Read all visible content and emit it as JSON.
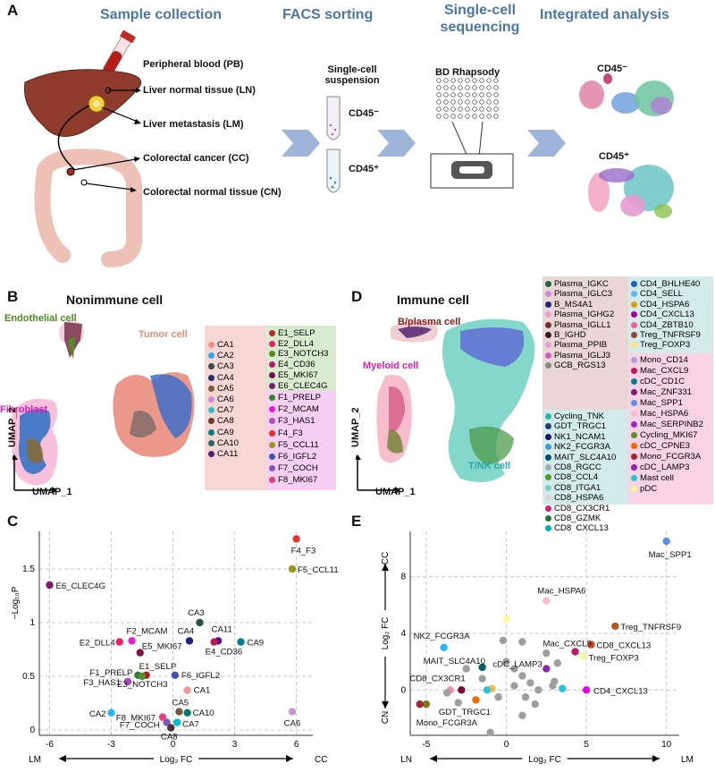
{
  "panels": {
    "A": {
      "label": "A",
      "titles": [
        "Sample collection",
        "FACS sorting",
        "Single-cell sequencing",
        "Integrated analysis"
      ],
      "samples": [
        "Peripheral blood (PB)",
        "Liver normal tissue (LN)",
        "Liver metastasis (LM)",
        "Colorectal cancer (CC)",
        "Colorectal normal tissue (CN)"
      ],
      "suspension": "Single-cell suspension",
      "cd45neg": "CD45⁻",
      "cd45pos": "CD45⁺",
      "platform": "BD Rhapsody"
    },
    "B": {
      "label": "B",
      "title": "Nonimmune cell",
      "cell_types": [
        "Endothelial cell",
        "Tumor cell",
        "Fibroblast"
      ],
      "umap2": "UMAP_2",
      "umap1": "UMAP_1",
      "legend_col1": [
        "CA1",
        "CA2",
        "CA3",
        "CA4",
        "CA5",
        "CA6",
        "CA7",
        "CA8",
        "CA9",
        "CA10",
        "CA11"
      ],
      "legend_col2_endo": [
        "E1_SELP",
        "E2_DLL4",
        "E3_NOTCH3",
        "E4_CD36",
        "E5_MKI67",
        "E6_CLEC4G"
      ],
      "legend_col2_fib": [
        "F1_PRELP",
        "F2_MCAM",
        "F3_HAS1",
        "F4_F3",
        "F5_CCL11",
        "F6_IGFL2",
        "F7_COCH",
        "F8_MKI67"
      ]
    },
    "C": {
      "label": "C"
    },
    "D": {
      "label": "D",
      "title": "Immune cell",
      "cell_types": [
        "B/plasma cell",
        "Myeloid cell",
        "T/NK cell"
      ],
      "umap2": "UMAP_2",
      "umap1": "UMAP_1",
      "legend_b": [
        "Plasma_IGKC",
        "Plasma_IGLC3",
        "B_MS4A1",
        "Plasma_IGHG2",
        "Plasma_IGLL1",
        "B_IGHD",
        "Plasma_PPIB",
        "Plasma_IGLJ3",
        "GCB_RGS13"
      ],
      "legend_t1": [
        "Cycling_TNK",
        "GDT_TRGC1",
        "NK1_NCAM1",
        "NK2_FCGR3A",
        "MAIT_SLC4A10",
        "CD8_RGCC",
        "CD8_CCL4",
        "CD8_ITGA1",
        "CD8_HSPA6",
        "CD8_CX3CR1",
        "CD8_GZMK",
        "CD8_CXCL13"
      ],
      "legend_t2": [
        "CD4_BHLHE40",
        "CD4_SELL",
        "CD4_HSPA6",
        "CD4_CXCL13",
        "CD4_ZBTB10",
        "Treg_TNFRSF9",
        "Treg_FOXP3"
      ],
      "legend_m": [
        "Mono_CD14",
        "Mac_CXCL9",
        "cDC_CD1C",
        "Mac_ZNF331",
        "Mac_SPP1",
        "Mac_HSPA6",
        "Mac_SERPINB2",
        "Cycling_MKI67",
        "cDC_CPNE3",
        "Mono_FCGR3A",
        "cDC_LAMP3",
        "Mast cell",
        "pDC"
      ]
    },
    "E": {
      "label": "E"
    }
  },
  "chart_data": [
    {
      "type": "scatter",
      "panel": "C",
      "xlabel": "Log₂ FC",
      "ylabel": "−Log₁₀P",
      "x_left": "LM",
      "x_right": "CC",
      "xlim": [
        -6.5,
        6.8
      ],
      "ylim": [
        -0.05,
        1.85
      ],
      "xticks": [
        -6,
        -3,
        0,
        3,
        6
      ],
      "yticks": [
        0,
        0.5,
        1,
        1.5
      ],
      "grid": true,
      "points": [
        {
          "label": "F4_F3",
          "x": 6.0,
          "y": 1.78,
          "color": "#e3342f"
        },
        {
          "label": "F5_CCL11",
          "x": 5.8,
          "y": 1.5,
          "color": "#9b9a1d"
        },
        {
          "label": "E6_CLEC4G",
          "x": -6.0,
          "y": 1.35,
          "color": "#7b1e6d"
        },
        {
          "label": "CA3",
          "x": 1.3,
          "y": 1.0,
          "color": "#2f4f4f"
        },
        {
          "label": "CA4",
          "x": 0.8,
          "y": 0.83,
          "color": "#1a237e"
        },
        {
          "label": "CA11",
          "x": 2.2,
          "y": 0.83,
          "color": "#4a148c"
        },
        {
          "label": "E4_CD36",
          "x": 2.0,
          "y": 0.82,
          "color": "#c2185b"
        },
        {
          "label": "CA9",
          "x": 3.3,
          "y": 0.82,
          "color": "#00838f"
        },
        {
          "label": "E2_DLL4",
          "x": -2.6,
          "y": 0.82,
          "color": "#e91e63"
        },
        {
          "label": "F2_MCAM",
          "x": -2.0,
          "y": 0.83,
          "color": "#e91ec8"
        },
        {
          "label": "E5_MKI67",
          "x": -1.6,
          "y": 0.72,
          "color": "#880e4f"
        },
        {
          "label": "E1_SELP",
          "x": -1.3,
          "y": 0.51,
          "color": "#b71c1c"
        },
        {
          "label": "F1_PRELP",
          "x": -1.7,
          "y": 0.51,
          "color": "#2e7d32"
        },
        {
          "label": "F6_IGFL2",
          "x": 0.1,
          "y": 0.51,
          "color": "#3f51b5"
        },
        {
          "label": "E3_NOTCH3",
          "x": -1.5,
          "y": 0.5,
          "color": "#558b2f"
        },
        {
          "label": "F3_HAS1",
          "x": -2.2,
          "y": 0.45,
          "color": "#ab47bc"
        },
        {
          "label": "CA1",
          "x": 0.7,
          "y": 0.37,
          "color": "#ef9a9a"
        },
        {
          "label": "CA2",
          "x": -3.0,
          "y": 0.16,
          "color": "#29b6f6"
        },
        {
          "label": "CA5",
          "x": 0.3,
          "y": 0.17,
          "color": "#795548"
        },
        {
          "label": "CA10",
          "x": 0.7,
          "y": 0.16,
          "color": "#00796b"
        },
        {
          "label": "CA7",
          "x": 0.2,
          "y": 0.07,
          "color": "#00bcd4"
        },
        {
          "label": "F8_MKI67",
          "x": -0.5,
          "y": 0.12,
          "color": "#ec407a"
        },
        {
          "label": "F7_COCH",
          "x": -0.3,
          "y": 0.07,
          "color": "#7e57c2"
        },
        {
          "label": "CA8",
          "x": -0.1,
          "y": 0.02,
          "color": "#4e342e"
        },
        {
          "label": "CA6",
          "x": 5.8,
          "y": 0.17,
          "color": "#ce93d8"
        }
      ]
    },
    {
      "type": "scatter",
      "panel": "E",
      "xlabel": "Log₂ FC",
      "ylabel": "Log₂ FC",
      "x_left": "LN",
      "x_right": "LM",
      "y_top": "CC",
      "y_bottom": "CN",
      "xlim": [
        -6,
        10.8
      ],
      "ylim": [
        -3.2,
        11.2
      ],
      "xticks": [
        -5,
        0,
        5,
        10
      ],
      "yticks": [
        0,
        4,
        8
      ],
      "grid": true,
      "points": [
        {
          "label": "Mac_SPP1",
          "x": 10.0,
          "y": 10.5,
          "color": "#5c8ee6"
        },
        {
          "label": "Mac_HSPA6",
          "x": 2.5,
          "y": 6.3,
          "color": "#f8bbd0"
        },
        {
          "label": "Treg_TNFRSF9",
          "x": 6.8,
          "y": 4.5,
          "color": "#b5561b"
        },
        {
          "label": "Mac_CXCL9",
          "x": 4.3,
          "y": 2.7,
          "color": "#c2185b"
        },
        {
          "label": "CD8_CXCL13",
          "x": 5.3,
          "y": 3.2,
          "color": "#d84315"
        },
        {
          "label": "Treg_FOXP3",
          "x": 4.8,
          "y": 2.4,
          "color": "#fff59d"
        },
        {
          "label": "cDC_LAMP3",
          "x": 2.5,
          "y": 1.5,
          "color": "#8e24aa"
        },
        {
          "label": "NK2_FCGR3A",
          "x": -3.9,
          "y": 3.0,
          "color": "#29b6f6"
        },
        {
          "label": "MAIT_SLC4A10",
          "x": -1.5,
          "y": 1.6,
          "color": "#006064"
        },
        {
          "label": "CD8_CX3CR1",
          "x": -2.8,
          "y": 0.0,
          "color": "#80003f"
        },
        {
          "label": "GDT_TRGC1",
          "x": -5.0,
          "y": -1.0,
          "color": "#827717"
        },
        {
          "label": "Mono_FCGR3A",
          "x": -5.4,
          "y": -1.0,
          "color": "#a1242e"
        },
        {
          "label": "CD4_CXCL13",
          "x": 5.0,
          "y": 0.0,
          "color": "#e600e6"
        },
        {
          "label": "",
          "x": 0.0,
          "y": 5.0,
          "color": "#fff59d"
        },
        {
          "label": "",
          "x": -1.9,
          "y": -0.7,
          "color": "#ef6c00"
        },
        {
          "label": "",
          "x": -0.9,
          "y": 0.1,
          "color": "#ffb74d"
        },
        {
          "label": "",
          "x": -3.5,
          "y": 0.0,
          "color": "#f48fb1"
        },
        {
          "label": "",
          "x": -1.2,
          "y": 0.0,
          "color": "#26c6da"
        },
        {
          "label": "",
          "x": 3.5,
          "y": 0.1,
          "color": "#26c6da"
        },
        {
          "label": "",
          "x": 3.0,
          "y": 0.6,
          "color": "#9e9e9e"
        },
        {
          "label": "",
          "x": 0.0,
          "y": 2.0,
          "color": "#9e9e9e"
        },
        {
          "label": "",
          "x": 0.5,
          "y": 1.5,
          "color": "#9e9e9e"
        },
        {
          "label": "",
          "x": 1.0,
          "y": 1.0,
          "color": "#9e9e9e"
        },
        {
          "label": "",
          "x": 1.5,
          "y": 0.5,
          "color": "#9e9e9e"
        },
        {
          "label": "",
          "x": 2.0,
          "y": 0.0,
          "color": "#9e9e9e"
        },
        {
          "label": "",
          "x": 1.2,
          "y": -0.5,
          "color": "#9e9e9e"
        },
        {
          "label": "",
          "x": 1.8,
          "y": -1.0,
          "color": "#9e9e9e"
        },
        {
          "label": "",
          "x": 1.0,
          "y": -1.8,
          "color": "#9e9e9e"
        },
        {
          "label": "",
          "x": -0.5,
          "y": -0.5,
          "color": "#9e9e9e"
        },
        {
          "label": "",
          "x": -1.5,
          "y": 0.8,
          "color": "#9e9e9e"
        },
        {
          "label": "",
          "x": -2.5,
          "y": 1.5,
          "color": "#9e9e9e"
        },
        {
          "label": "",
          "x": -0.2,
          "y": 3.5,
          "color": "#9e9e9e"
        },
        {
          "label": "",
          "x": 1.0,
          "y": 3.4,
          "color": "#9e9e9e"
        },
        {
          "label": "",
          "x": 2.5,
          "y": 2.6,
          "color": "#9e9e9e"
        },
        {
          "label": "",
          "x": 3.2,
          "y": 1.9,
          "color": "#9e9e9e"
        },
        {
          "label": "",
          "x": 2.9,
          "y": 0.3,
          "color": "#9e9e9e"
        },
        {
          "label": "",
          "x": -1.0,
          "y": -3.0,
          "color": "#9e9e9e"
        },
        {
          "label": "",
          "x": -3.0,
          "y": -0.9,
          "color": "#9e9e9e"
        },
        {
          "label": "",
          "x": -3.7,
          "y": -0.2,
          "color": "#9e9e9e"
        },
        {
          "label": "",
          "x": 0.5,
          "y": 0.3,
          "color": "#9e9e9e"
        }
      ]
    }
  ]
}
